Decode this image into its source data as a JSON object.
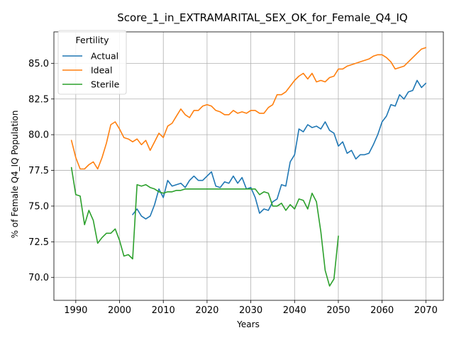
{
  "chart_data": {
    "type": "line",
    "title": "Score_1_in_EXTRAMARITAL_SEX_OK_for_Female_Q4_IQ",
    "xlabel": "Years",
    "ylabel": "% of Female Q4_IQ Population",
    "xlim": [
      1985,
      2074
    ],
    "ylim": [
      68.4,
      87.2
    ],
    "xticks": [
      1990,
      2000,
      2010,
      2020,
      2030,
      2040,
      2050,
      2060,
      2070
    ],
    "yticks": [
      70.0,
      72.5,
      75.0,
      77.5,
      80.0,
      82.5,
      85.0
    ],
    "grid": true,
    "legend": {
      "title": "Fertility",
      "placement": "upper left"
    },
    "series": [
      {
        "name": "Actual",
        "color": "#1f77b4",
        "x": [
          2003,
          2004,
          2005,
          2006,
          2007,
          2008,
          2009,
          2010,
          2011,
          2012,
          2013,
          2014,
          2015,
          2016,
          2017,
          2018,
          2019,
          2020,
          2021,
          2022,
          2023,
          2024,
          2025,
          2026,
          2027,
          2028,
          2029,
          2030,
          2031,
          2032,
          2033,
          2034,
          2035,
          2036,
          2037,
          2038,
          2039,
          2040,
          2041,
          2042,
          2043,
          2044,
          2045,
          2046,
          2047,
          2048,
          2049,
          2050,
          2051,
          2052,
          2053,
          2054,
          2055,
          2056,
          2057,
          2058,
          2059,
          2060,
          2061,
          2062,
          2063,
          2064,
          2065,
          2066,
          2067,
          2068,
          2069,
          2070
        ],
        "y": [
          74.4,
          74.8,
          74.3,
          74.1,
          74.3,
          75.1,
          76.2,
          75.6,
          76.8,
          76.4,
          76.5,
          76.6,
          76.3,
          76.8,
          77.1,
          76.8,
          76.8,
          77.1,
          77.4,
          76.4,
          76.3,
          76.7,
          76.6,
          77.1,
          76.6,
          77.0,
          76.2,
          76.3,
          75.6,
          74.5,
          74.8,
          74.7,
          75.3,
          75.5,
          76.5,
          76.4,
          78.1,
          78.6,
          80.4,
          80.2,
          80.7,
          80.5,
          80.6,
          80.4,
          80.9,
          80.3,
          80.1,
          79.2,
          79.5,
          78.7,
          78.9,
          78.3,
          78.6,
          78.6,
          78.7,
          79.3,
          80.0,
          80.9,
          81.3,
          82.1,
          82.0,
          82.8,
          82.5,
          83.0,
          83.1,
          83.8,
          83.3,
          83.6
        ]
      },
      {
        "name": "Ideal",
        "color": "#ff7f0e",
        "x": [
          1989,
          1990,
          1991,
          1992,
          1993,
          1994,
          1995,
          1996,
          1997,
          1998,
          1999,
          2000,
          2001,
          2002,
          2003,
          2004,
          2005,
          2006,
          2007,
          2008,
          2009,
          2010,
          2011,
          2012,
          2013,
          2014,
          2015,
          2016,
          2017,
          2018,
          2019,
          2020,
          2021,
          2022,
          2023,
          2024,
          2025,
          2026,
          2027,
          2028,
          2029,
          2030,
          2031,
          2032,
          2033,
          2034,
          2035,
          2036,
          2037,
          2038,
          2039,
          2040,
          2041,
          2042,
          2043,
          2044,
          2045,
          2046,
          2047,
          2048,
          2049,
          2050,
          2051,
          2052,
          2053,
          2054,
          2055,
          2056,
          2057,
          2058,
          2059,
          2060,
          2061,
          2062,
          2063,
          2064,
          2065,
          2066,
          2067,
          2068,
          2069,
          2070
        ],
        "y": [
          79.6,
          78.4,
          77.6,
          77.6,
          77.9,
          78.1,
          77.6,
          78.4,
          79.4,
          80.7,
          80.9,
          80.4,
          79.8,
          79.7,
          79.5,
          79.7,
          79.3,
          79.6,
          78.9,
          79.5,
          80.1,
          79.8,
          80.6,
          80.8,
          81.3,
          81.8,
          81.4,
          81.2,
          81.7,
          81.7,
          82.0,
          82.1,
          82.0,
          81.7,
          81.6,
          81.4,
          81.4,
          81.7,
          81.5,
          81.6,
          81.5,
          81.7,
          81.7,
          81.5,
          81.5,
          81.9,
          82.1,
          82.8,
          82.8,
          83.0,
          83.4,
          83.8,
          84.1,
          84.3,
          83.9,
          84.3,
          83.7,
          83.8,
          83.7,
          84.0,
          84.1,
          84.6,
          84.6,
          84.8,
          84.9,
          85.0,
          85.1,
          85.2,
          85.3,
          85.5,
          85.6,
          85.6,
          85.4,
          85.1,
          84.6,
          84.7,
          84.8,
          85.1,
          85.4,
          85.7,
          86.0,
          86.1
        ]
      },
      {
        "name": "Sterile",
        "color": "#2ca02c",
        "x": [
          1989,
          1990,
          1991,
          1992,
          1993,
          1994,
          1995,
          1996,
          1997,
          1998,
          1999,
          2000,
          2001,
          2002,
          2003,
          2004,
          2005,
          2006,
          2007,
          2008,
          2009,
          2010,
          2011,
          2012,
          2013,
          2014,
          2015,
          2016,
          2017,
          2018,
          2019,
          2020,
          2021,
          2022,
          2023,
          2024,
          2025,
          2026,
          2027,
          2028,
          2029,
          2030,
          2031,
          2032,
          2033,
          2034,
          2035,
          2036,
          2037,
          2038,
          2039,
          2040,
          2041,
          2042,
          2043,
          2044,
          2045,
          2046,
          2047,
          2048,
          2049,
          2050
        ],
        "y": [
          77.7,
          75.8,
          75.7,
          73.7,
          74.7,
          74.0,
          72.4,
          72.8,
          73.1,
          73.1,
          73.4,
          72.6,
          71.5,
          71.6,
          71.3,
          76.5,
          76.4,
          76.5,
          76.3,
          76.2,
          76.0,
          75.9,
          76.0,
          76.0,
          76.1,
          76.1,
          76.2,
          76.2,
          76.2,
          76.2,
          76.2,
          76.2,
          76.2,
          76.2,
          76.2,
          76.2,
          76.2,
          76.2,
          76.2,
          76.2,
          76.2,
          76.2,
          76.2,
          75.8,
          76.0,
          75.9,
          75.0,
          75.0,
          75.2,
          74.7,
          75.1,
          74.8,
          75.5,
          75.4,
          74.8,
          75.9,
          75.3,
          73.2,
          70.5,
          69.4,
          69.9,
          72.9
        ]
      }
    ]
  }
}
